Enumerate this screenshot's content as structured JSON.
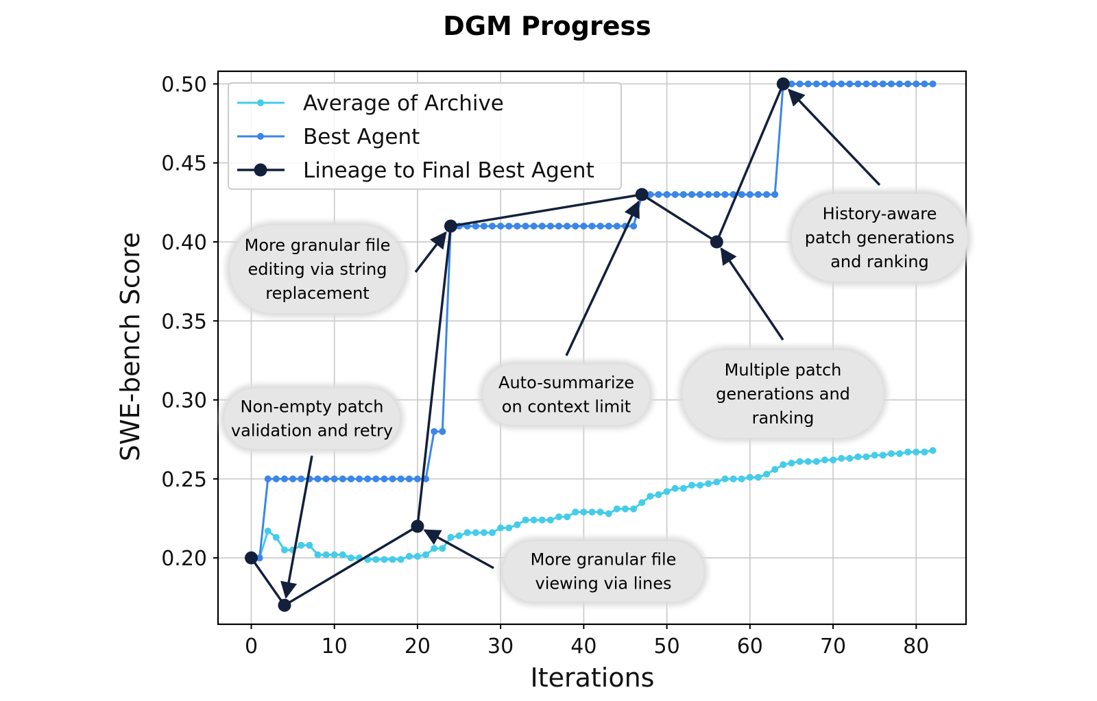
{
  "chart_data": {
    "type": "line",
    "title": "DGM Progress",
    "xlabel": "Iterations",
    "ylabel": "SWE-bench Score",
    "xlim": [
      -4,
      86
    ],
    "ylim": [
      0.158,
      0.508
    ],
    "xticks": [
      0,
      10,
      20,
      30,
      40,
      50,
      60,
      70,
      80
    ],
    "yticks": [
      0.2,
      0.25,
      0.3,
      0.35,
      0.4,
      0.45,
      0.5
    ],
    "ytick_labels": [
      "0.20",
      "0.25",
      "0.30",
      "0.35",
      "0.40",
      "0.45",
      "0.50"
    ],
    "grid": true,
    "legend_position": "top-left",
    "series": [
      {
        "name": "Average of Archive",
        "color": "#44ccea",
        "x": [
          1,
          2,
          3,
          4,
          5,
          6,
          7,
          8,
          9,
          10,
          11,
          12,
          13,
          14,
          15,
          16,
          17,
          18,
          19,
          20,
          21,
          22,
          23,
          24,
          25,
          26,
          27,
          28,
          29,
          30,
          31,
          32,
          33,
          34,
          35,
          36,
          37,
          38,
          39,
          40,
          41,
          42,
          43,
          44,
          45,
          46,
          47,
          48,
          49,
          50,
          51,
          52,
          53,
          54,
          55,
          56,
          57,
          58,
          59,
          60,
          61,
          62,
          63,
          64,
          65,
          66,
          67,
          68,
          69,
          70,
          71,
          72,
          73,
          74,
          75,
          76,
          77,
          78,
          79,
          80,
          81,
          82
        ],
        "values": [
          0.2,
          0.217,
          0.213,
          0.205,
          0.205,
          0.208,
          0.208,
          0.202,
          0.202,
          0.202,
          0.202,
          0.2,
          0.2,
          0.199,
          0.199,
          0.199,
          0.199,
          0.199,
          0.201,
          0.201,
          0.202,
          0.206,
          0.206,
          0.213,
          0.214,
          0.216,
          0.216,
          0.216,
          0.216,
          0.219,
          0.219,
          0.221,
          0.224,
          0.224,
          0.224,
          0.224,
          0.226,
          0.226,
          0.229,
          0.229,
          0.229,
          0.229,
          0.228,
          0.231,
          0.231,
          0.231,
          0.235,
          0.239,
          0.24,
          0.242,
          0.244,
          0.244,
          0.246,
          0.246,
          0.247,
          0.248,
          0.25,
          0.25,
          0.25,
          0.251,
          0.251,
          0.253,
          0.256,
          0.259,
          0.26,
          0.261,
          0.261,
          0.261,
          0.262,
          0.262,
          0.263,
          0.263,
          0.264,
          0.264,
          0.265,
          0.265,
          0.266,
          0.266,
          0.267,
          0.267,
          0.267,
          0.268
        ]
      },
      {
        "name": "Best Agent",
        "color": "#3b86e8",
        "x": [
          1,
          2,
          3,
          4,
          5,
          6,
          7,
          8,
          9,
          10,
          11,
          12,
          13,
          14,
          15,
          16,
          17,
          18,
          19,
          20,
          21,
          22,
          23,
          24,
          25,
          26,
          27,
          28,
          29,
          30,
          31,
          32,
          33,
          34,
          35,
          36,
          37,
          38,
          39,
          40,
          41,
          42,
          43,
          44,
          45,
          46,
          47,
          48,
          49,
          50,
          51,
          52,
          53,
          54,
          55,
          56,
          57,
          58,
          59,
          60,
          61,
          62,
          63,
          64,
          65,
          66,
          67,
          68,
          69,
          70,
          71,
          72,
          73,
          74,
          75,
          76,
          77,
          78,
          79,
          80,
          81,
          82
        ],
        "values": [
          0.2,
          0.25,
          0.25,
          0.25,
          0.25,
          0.25,
          0.25,
          0.25,
          0.25,
          0.25,
          0.25,
          0.25,
          0.25,
          0.25,
          0.25,
          0.25,
          0.25,
          0.25,
          0.25,
          0.25,
          0.25,
          0.28,
          0.28,
          0.41,
          0.41,
          0.41,
          0.41,
          0.41,
          0.41,
          0.41,
          0.41,
          0.41,
          0.41,
          0.41,
          0.41,
          0.41,
          0.41,
          0.41,
          0.41,
          0.41,
          0.41,
          0.41,
          0.41,
          0.41,
          0.41,
          0.41,
          0.43,
          0.43,
          0.43,
          0.43,
          0.43,
          0.43,
          0.43,
          0.43,
          0.43,
          0.43,
          0.43,
          0.43,
          0.43,
          0.43,
          0.43,
          0.43,
          0.43,
          0.5,
          0.5,
          0.5,
          0.5,
          0.5,
          0.5,
          0.5,
          0.5,
          0.5,
          0.5,
          0.5,
          0.5,
          0.5,
          0.5,
          0.5,
          0.5,
          0.5,
          0.5,
          0.5
        ]
      },
      {
        "name": "Lineage to Final Best Agent",
        "color": "#13203c",
        "x": [
          0,
          4,
          20,
          24,
          47,
          56,
          64
        ],
        "values": [
          0.2,
          0.17,
          0.22,
          0.41,
          0.43,
          0.4,
          0.5
        ]
      }
    ],
    "annotations": [
      {
        "lines": [
          "Non-empty patch",
          "validation and retry"
        ],
        "target": [
          4,
          0.17
        ]
      },
      {
        "lines": [
          "More granular file",
          "viewing via lines"
        ],
        "target": [
          20,
          0.22
        ]
      },
      {
        "lines": [
          "More granular file",
          "editing via string",
          "replacement"
        ],
        "target": [
          24,
          0.41
        ]
      },
      {
        "lines": [
          "Auto-summarize",
          "on context limit"
        ],
        "target": [
          47,
          0.43
        ]
      },
      {
        "lines": [
          "Multiple patch",
          "generations and",
          "ranking"
        ],
        "target": [
          56,
          0.4
        ]
      },
      {
        "lines": [
          "History-aware",
          "patch generations",
          "and ranking"
        ],
        "target": [
          64,
          0.5
        ]
      }
    ]
  }
}
